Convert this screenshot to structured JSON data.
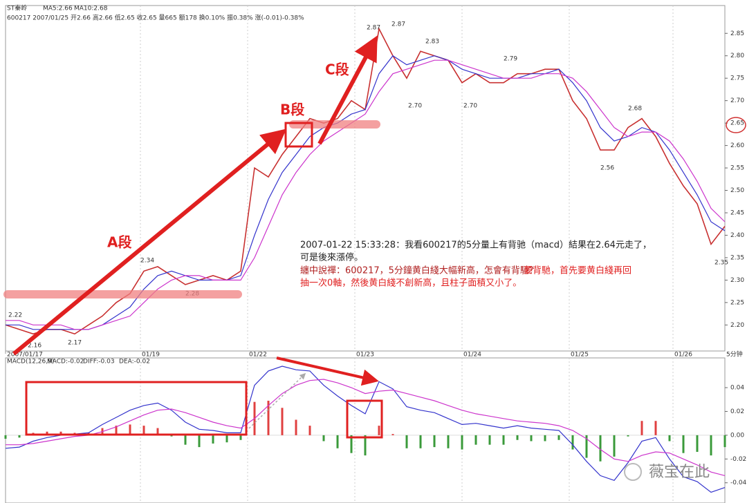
{
  "chart_data": [
    {
      "type": "line",
      "title": "ST秦岭",
      "subtitle": "600217 2007/01/25 开2.66 高2.66 低2.65 收2.65 量665 额178 换0.10% 振0.38% 涨(-0.01)-0.38%",
      "x": [
        0,
        2,
        4,
        6,
        8,
        10,
        12,
        14,
        16,
        18,
        20,
        22,
        24,
        26,
        28,
        30,
        32,
        34,
        36,
        38,
        40,
        42,
        44,
        46,
        48,
        50,
        52,
        54,
        56,
        58,
        60,
        62,
        64,
        66,
        68,
        70,
        72,
        74,
        76,
        78,
        80,
        82,
        84,
        86,
        88,
        90,
        92,
        94,
        96,
        98,
        100,
        102,
        104
      ],
      "xlim": [
        0,
        104
      ],
      "xticks": [
        {
          "value": 0,
          "label": "2007/01/17"
        },
        {
          "value": 19.5,
          "label": "01/19"
        },
        {
          "value": 35,
          "label": "01/22"
        },
        {
          "value": 50.5,
          "label": "01/23"
        },
        {
          "value": 66,
          "label": "01/24"
        },
        {
          "value": 81.5,
          "label": "01/25"
        },
        {
          "value": 96.5,
          "label": "01/26"
        }
      ],
      "x_unit_label": "5分钟",
      "ylim": [
        2.142,
        2.912
      ],
      "yticks": [
        {
          "value": 2.2,
          "label": "2.20"
        },
        2.25,
        {
          "value": 2.3,
          "label": "2.30"
        },
        2.35,
        {
          "value": 2.4,
          "label": "2.40"
        },
        2.45,
        {
          "value": 2.5,
          "label": "2.50"
        },
        2.55,
        {
          "value": 2.6,
          "label": "2.60"
        },
        2.65,
        {
          "value": 2.7,
          "label": "2.70"
        },
        2.75,
        {
          "value": 2.8,
          "label": "2.80"
        },
        2.85
      ],
      "grid": true,
      "series": [
        {
          "color": "#c83030",
          "values": [
            2.2,
            2.19,
            2.18,
            2.19,
            2.19,
            2.18,
            2.2,
            2.22,
            2.25,
            2.27,
            2.32,
            2.33,
            2.31,
            2.29,
            2.3,
            2.31,
            2.3,
            2.32,
            2.55,
            2.53,
            2.58,
            2.62,
            2.66,
            2.65,
            2.66,
            2.7,
            2.68,
            2.86,
            2.8,
            2.75,
            2.81,
            2.8,
            2.79,
            2.74,
            2.76,
            2.74,
            2.74,
            2.76,
            2.76,
            2.77,
            2.77,
            2.7,
            2.66,
            2.59,
            2.59,
            2.64,
            2.66,
            2.62,
            2.56,
            2.51,
            2.47,
            2.38,
            2.42
          ]
        },
        {
          "name": "MA5:2.66",
          "color": "#3333cc",
          "values": [
            2.2,
            2.2,
            2.19,
            2.19,
            2.19,
            2.19,
            2.19,
            2.2,
            2.22,
            2.24,
            2.28,
            2.31,
            2.32,
            2.31,
            2.3,
            2.3,
            2.3,
            2.31,
            2.4,
            2.48,
            2.54,
            2.58,
            2.62,
            2.64,
            2.65,
            2.67,
            2.68,
            2.76,
            2.8,
            2.78,
            2.79,
            2.8,
            2.79,
            2.77,
            2.76,
            2.75,
            2.75,
            2.75,
            2.76,
            2.76,
            2.77,
            2.74,
            2.7,
            2.64,
            2.61,
            2.62,
            2.64,
            2.63,
            2.59,
            2.54,
            2.49,
            2.43,
            2.41
          ]
        },
        {
          "name": "MA10:2.68",
          "color": "#cc33cc",
          "values": [
            2.21,
            2.21,
            2.2,
            2.2,
            2.2,
            2.19,
            2.19,
            2.2,
            2.21,
            2.22,
            2.25,
            2.28,
            2.3,
            2.31,
            2.31,
            2.3,
            2.3,
            2.3,
            2.35,
            2.42,
            2.49,
            2.54,
            2.58,
            2.61,
            2.63,
            2.65,
            2.67,
            2.72,
            2.76,
            2.77,
            2.78,
            2.79,
            2.79,
            2.78,
            2.77,
            2.76,
            2.75,
            2.75,
            2.75,
            2.76,
            2.76,
            2.75,
            2.72,
            2.68,
            2.64,
            2.62,
            2.63,
            2.63,
            2.61,
            2.57,
            2.52,
            2.46,
            2.43
          ]
        }
      ],
      "annotations": [
        "2.22",
        "2.16",
        "2.17",
        "2.34",
        "2.28",
        "2.87",
        "2.87",
        "2.83",
        "2.70",
        "2.70",
        "2.79",
        "2.68",
        "2.56",
        "2.35"
      ],
      "segment_labels": [
        "A段",
        "B段",
        "C段"
      ],
      "commentary": [
        "2007-01-22 15:33:28：我看600217的5分量上有背驰（macd）結果在2.64元走了，",
        "可是後來漲停。"
      ],
      "commentary_red": [
        "纏中說禪：600217，5分鐘黄白綫大幅新高，怎會有背馳？",
        "要背馳，首先要黄白綫再回",
        "抽一次0軸，然後黄白綫不創新高，且柱子面積又小了。"
      ]
    },
    {
      "type": "line",
      "title": "MACD(12,26,9)",
      "x": [
        0,
        2,
        4,
        6,
        8,
        10,
        12,
        14,
        16,
        18,
        20,
        22,
        24,
        26,
        28,
        30,
        32,
        34,
        36,
        38,
        40,
        42,
        44,
        46,
        48,
        50,
        52,
        54,
        56,
        58,
        60,
        62,
        64,
        66,
        68,
        70,
        72,
        74,
        76,
        78,
        80,
        82,
        84,
        86,
        88,
        90,
        92,
        94,
        96,
        98,
        100,
        102,
        104
      ],
      "xlim": [
        0,
        104
      ],
      "xticks": [
        0,
        19.5,
        35,
        50.5,
        66,
        81.5,
        96.5
      ],
      "ylim": [
        -0.057,
        0.065
      ],
      "yticks": [
        0.04,
        0.02,
        {
          "value": 0,
          "label": "0.00"
        },
        -0.02,
        -0.04
      ],
      "grid": true,
      "series": [
        {
          "name": "MACD:-0.02",
          "type": "bar",
          "color": "#e04040",
          "negative_color": "#3a9a3a",
          "values": [
            -0.003,
            -0.002,
            0.002,
            0.003,
            0.003,
            0.002,
            0.002,
            0.006,
            0.008,
            0.009,
            0.008,
            0.006,
            -0.001,
            -0.008,
            -0.01,
            -0.007,
            -0.006,
            -0.004,
            0.028,
            0.029,
            0.023,
            0.013,
            0.008,
            -0.005,
            -0.011,
            -0.015,
            -0.017,
            0.008,
            0.001,
            -0.011,
            -0.011,
            -0.01,
            -0.011,
            -0.012,
            -0.008,
            -0.008,
            -0.008,
            -0.004,
            -0.005,
            -0.005,
            -0.004,
            -0.012,
            -0.019,
            -0.022,
            -0.018,
            -0.001,
            0.012,
            0.012,
            -0.005,
            -0.015,
            -0.014,
            -0.017,
            -0.01
          ]
        },
        {
          "name": "DIFF:-0.03",
          "color": "#3333cc",
          "values": [
            -0.011,
            -0.01,
            -0.005,
            -0.002,
            0,
            0.001,
            0.002,
            0.009,
            0.015,
            0.021,
            0.025,
            0.027,
            0.021,
            0.011,
            0.005,
            0.004,
            0.002,
            0.002,
            0.042,
            0.054,
            0.058,
            0.055,
            0.054,
            0.042,
            0.033,
            0.025,
            0.018,
            0.045,
            0.039,
            0.024,
            0.021,
            0.019,
            0.014,
            0.009,
            0.01,
            0.008,
            0.006,
            0.008,
            0.006,
            0.005,
            0.004,
            -0.008,
            -0.022,
            -0.034,
            -0.038,
            -0.023,
            -0.005,
            -0.002,
            -0.02,
            -0.035,
            -0.039,
            -0.048,
            -0.044
          ]
        },
        {
          "name": "DEA:-0.02",
          "color": "#cc33cc",
          "values": [
            -0.008,
            -0.008,
            -0.007,
            -0.005,
            -0.003,
            -0.001,
            0.0,
            0.003,
            0.007,
            0.012,
            0.017,
            0.021,
            0.022,
            0.019,
            0.015,
            0.011,
            0.008,
            0.006,
            0.014,
            0.025,
            0.035,
            0.042,
            0.046,
            0.047,
            0.044,
            0.04,
            0.035,
            0.037,
            0.038,
            0.035,
            0.032,
            0.029,
            0.025,
            0.021,
            0.018,
            0.016,
            0.014,
            0.012,
            0.011,
            0.01,
            0.008,
            0.004,
            -0.003,
            -0.012,
            -0.02,
            -0.022,
            -0.017,
            -0.014,
            -0.015,
            -0.02,
            -0.025,
            -0.031,
            -0.034
          ]
        }
      ]
    }
  ],
  "watermark": "薇宝在此"
}
